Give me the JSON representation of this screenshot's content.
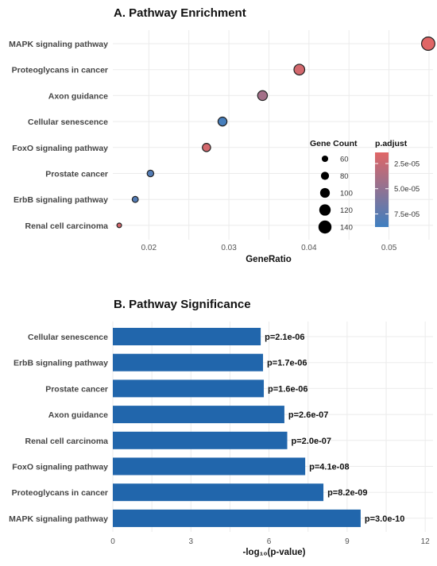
{
  "chart_data": [
    {
      "type": "scatter",
      "title": "A. Pathway Enrichment",
      "xlabel": "GeneRatio",
      "ylabel": "",
      "xlim": [
        0.0155,
        0.0555
      ],
      "xticks": [
        0.02,
        0.03,
        0.04,
        0.05
      ],
      "xtick_labels": [
        "0.02",
        "0.03",
        "0.04",
        "0.05"
      ],
      "grid": true,
      "legend_placement": "right",
      "points": [
        {
          "pathway": "MAPK signaling pathway",
          "gene_ratio": 0.0549,
          "count": 143,
          "p_adjust": 1.4e-05
        },
        {
          "pathway": "Proteoglycans in cancer",
          "gene_ratio": 0.0388,
          "count": 112,
          "p_adjust": 2e-05
        },
        {
          "pathway": "Axon guidance",
          "gene_ratio": 0.0342,
          "count": 100,
          "p_adjust": 4.2e-05
        },
        {
          "pathway": "Cellular senescence",
          "gene_ratio": 0.0292,
          "count": 90,
          "p_adjust": 8.5e-05
        },
        {
          "pathway": "FoxO signaling pathway",
          "gene_ratio": 0.0272,
          "count": 82,
          "p_adjust": 2e-05
        },
        {
          "pathway": "Prostate cancer",
          "gene_ratio": 0.0202,
          "count": 62,
          "p_adjust": 7.9e-05
        },
        {
          "pathway": "ErbB signaling pathway",
          "gene_ratio": 0.0183,
          "count": 55,
          "p_adjust": 7.9e-05
        },
        {
          "pathway": "Renal cell carcinoma",
          "gene_ratio": 0.0163,
          "count": 38,
          "p_adjust": 2e-05
        }
      ],
      "size_legend": {
        "title": "Gene Count",
        "values": [
          60,
          80,
          100,
          120,
          140
        ],
        "labels": [
          "60",
          "80",
          "100",
          "120",
          "140"
        ]
      },
      "color_legend": {
        "title": "p.adjust",
        "min": 1.4e-05,
        "max": 8.8e-05,
        "ticks": [
          2.5e-05,
          5e-05,
          7.5e-05
        ],
        "tick_labels": [
          "2.5e-05",
          "5.0e-05",
          "7.5e-05"
        ],
        "low_color": "#e06666",
        "high_color": "#3f7fc0"
      }
    },
    {
      "type": "bar",
      "orientation": "horizontal",
      "title": "B. Pathway Significance",
      "xlabel": "-log₁₀(p-value)",
      "ylabel": "",
      "xlim": [
        0,
        12.3
      ],
      "xticks": [
        0,
        3,
        6,
        9,
        12
      ],
      "xtick_labels": [
        "0",
        "3",
        "6",
        "9",
        "12"
      ],
      "grid": true,
      "bar_color": "#2166ac",
      "categories": [
        "Cellular senescence",
        "ErbB signaling pathway",
        "Prostate cancer",
        "Axon guidance",
        "Renal cell carcinoma",
        "FoxO signaling pathway",
        "Proteoglycans in cancer",
        "MAPK signaling pathway"
      ],
      "values": [
        5.68,
        5.77,
        5.8,
        6.59,
        6.7,
        7.39,
        8.09,
        9.52
      ],
      "data_labels": [
        "p=2.1e-06",
        "p=1.7e-06",
        "p=1.6e-06",
        "p=2.6e-07",
        "p=2.0e-07",
        "p=4.1e-08",
        "p=8.2e-09",
        "p=3.0e-10"
      ]
    }
  ]
}
